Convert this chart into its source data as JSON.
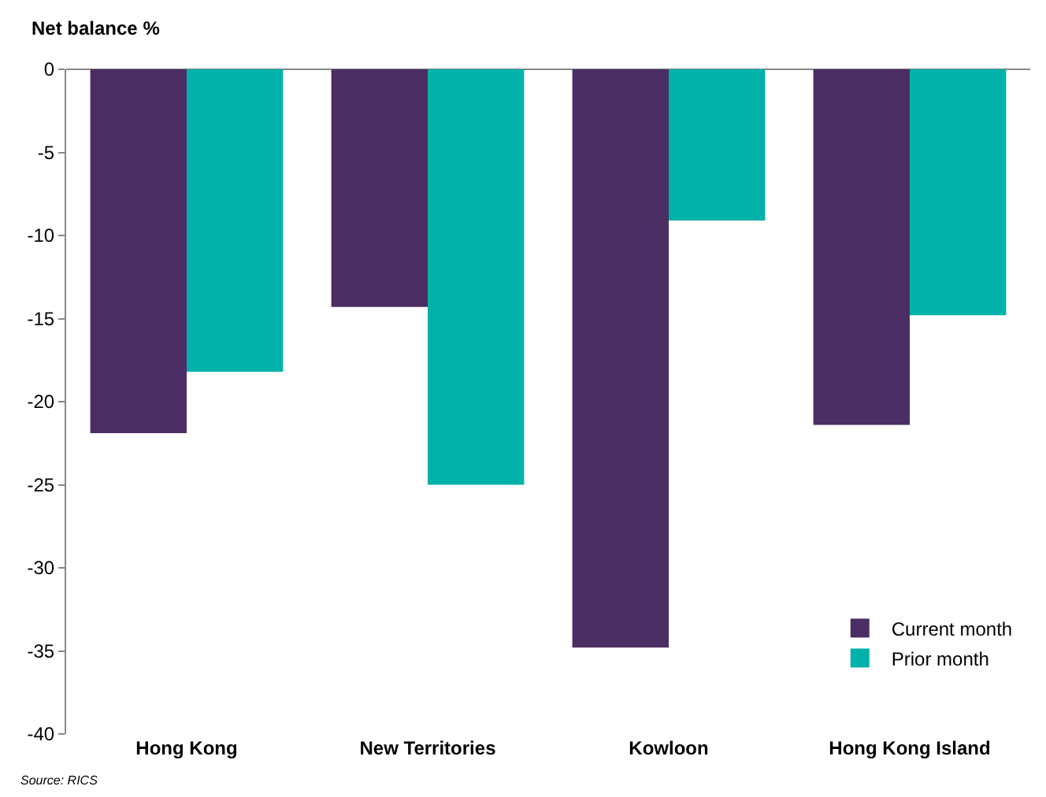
{
  "chart_data": {
    "type": "bar",
    "ylabel": "Net balance %",
    "categories": [
      "Hong Kong",
      "New Territories",
      "Kowloon",
      "Hong Kong Island"
    ],
    "series": [
      {
        "name": "Current month",
        "color": "#4b2e63",
        "values": [
          -21.9,
          -14.3,
          -34.8,
          -21.4
        ]
      },
      {
        "name": "Prior month",
        "color": "#00b2a9",
        "values": [
          -18.2,
          -25.0,
          -9.1,
          -14.8
        ]
      }
    ],
    "ylim": [
      -40,
      0
    ],
    "yticks": [
      -40,
      -35,
      -30,
      -25,
      -20,
      -15,
      -10,
      -5,
      0
    ],
    "grid": false,
    "legend": "bottom right",
    "annotations": [
      "Source: RICS"
    ]
  }
}
